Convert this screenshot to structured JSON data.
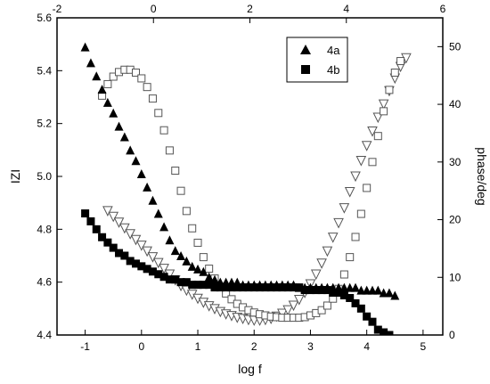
{
  "chart_data": {
    "type": "scatter",
    "xlabel": "log f",
    "ylabel_left": "IZI",
    "ylabel_right": "phase/deg",
    "x_bottom": {
      "lim": [
        -1.5,
        5.35
      ],
      "ticks": [
        -1,
        0,
        1,
        2,
        3,
        4,
        5
      ]
    },
    "x_top": {
      "lim": [
        -2,
        6
      ],
      "ticks": [
        -2,
        0,
        2,
        4,
        6
      ]
    },
    "y_left": {
      "lim": [
        4.4,
        5.6
      ],
      "ticks": [
        4.4,
        4.6,
        4.8,
        5.0,
        5.2,
        5.4,
        5.6
      ]
    },
    "y_right": {
      "lim": [
        0,
        55
      ],
      "ticks": [
        0,
        10,
        20,
        30,
        40,
        50
      ]
    },
    "legend": {
      "position": "top-right",
      "entries": [
        "4a",
        "4b"
      ]
    },
    "series": [
      {
        "name": "4a",
        "marker": "filled-triangle-up",
        "axis": "left",
        "x": [
          -1.0,
          -0.9,
          -0.8,
          -0.7,
          -0.6,
          -0.5,
          -0.4,
          -0.3,
          -0.2,
          -0.1,
          0.0,
          0.1,
          0.2,
          0.3,
          0.4,
          0.5,
          0.6,
          0.7,
          0.8,
          0.9,
          1.0,
          1.1,
          1.2,
          1.3,
          1.4,
          1.5,
          1.6,
          1.7,
          1.8,
          1.9,
          2.0,
          2.1,
          2.2,
          2.3,
          2.4,
          2.5,
          2.6,
          2.7,
          2.8,
          2.9,
          3.0,
          3.1,
          3.2,
          3.3,
          3.4,
          3.5,
          3.6,
          3.7,
          3.8,
          3.9,
          4.0,
          4.1,
          4.2,
          4.3,
          4.4,
          4.5
        ],
        "y": [
          5.49,
          5.43,
          5.38,
          5.33,
          5.28,
          5.24,
          5.19,
          5.15,
          5.1,
          5.06,
          5.01,
          4.96,
          4.91,
          4.86,
          4.81,
          4.76,
          4.72,
          4.7,
          4.68,
          4.66,
          4.65,
          4.64,
          4.62,
          4.61,
          4.6,
          4.6,
          4.6,
          4.6,
          4.59,
          4.59,
          4.59,
          4.59,
          4.59,
          4.59,
          4.59,
          4.59,
          4.59,
          4.59,
          4.58,
          4.58,
          4.58,
          4.58,
          4.58,
          4.58,
          4.58,
          4.58,
          4.58,
          4.58,
          4.58,
          4.57,
          4.57,
          4.57,
          4.57,
          4.56,
          4.56,
          4.55
        ]
      },
      {
        "name": "4b",
        "marker": "filled-square",
        "axis": "left",
        "x": [
          -1.0,
          -0.9,
          -0.8,
          -0.7,
          -0.6,
          -0.5,
          -0.4,
          -0.3,
          -0.2,
          -0.1,
          0.0,
          0.1,
          0.2,
          0.3,
          0.4,
          0.5,
          0.6,
          0.7,
          0.8,
          0.9,
          1.0,
          1.1,
          1.2,
          1.3,
          1.4,
          1.5,
          1.6,
          1.7,
          1.8,
          1.9,
          2.0,
          2.1,
          2.2,
          2.3,
          2.4,
          2.5,
          2.6,
          2.7,
          2.8,
          2.9,
          3.0,
          3.1,
          3.2,
          3.3,
          3.4,
          3.5,
          3.6,
          3.7,
          3.8,
          3.9,
          4.0,
          4.1,
          4.2,
          4.3,
          4.4
        ],
        "y": [
          4.86,
          4.83,
          4.8,
          4.77,
          4.75,
          4.73,
          4.71,
          4.7,
          4.68,
          4.67,
          4.66,
          4.65,
          4.64,
          4.63,
          4.62,
          4.61,
          4.61,
          4.6,
          4.6,
          4.59,
          4.59,
          4.59,
          4.59,
          4.58,
          4.58,
          4.58,
          4.58,
          4.58,
          4.58,
          4.58,
          4.58,
          4.58,
          4.58,
          4.58,
          4.58,
          4.58,
          4.58,
          4.58,
          4.58,
          4.57,
          4.57,
          4.57,
          4.57,
          4.57,
          4.56,
          4.56,
          4.55,
          4.54,
          4.52,
          4.5,
          4.47,
          4.45,
          4.42,
          4.41,
          4.4
        ]
      },
      {
        "name": "phase 4a",
        "marker": "open-triangle-down",
        "axis": "right",
        "x": [
          -0.6,
          -0.5,
          -0.4,
          -0.3,
          -0.2,
          -0.1,
          0.0,
          0.1,
          0.2,
          0.3,
          0.4,
          0.5,
          0.6,
          0.7,
          0.8,
          0.9,
          1.0,
          1.1,
          1.2,
          1.3,
          1.4,
          1.5,
          1.6,
          1.7,
          1.8,
          1.9,
          2.0,
          2.1,
          2.2,
          2.3,
          2.4,
          2.5,
          2.6,
          2.7,
          2.8,
          2.9,
          3.0,
          3.1,
          3.2,
          3.3,
          3.4,
          3.5,
          3.6,
          3.7,
          3.8,
          3.9,
          4.0,
          4.1,
          4.2,
          4.3,
          4.4,
          4.5,
          4.6,
          4.7
        ],
        "y": [
          21.5,
          20.5,
          19.5,
          18.5,
          17.5,
          16.5,
          15.5,
          14.5,
          13.5,
          12.5,
          11.5,
          10.5,
          9.5,
          8.5,
          7.7,
          7.0,
          6.3,
          5.6,
          5.0,
          4.5,
          4.0,
          3.6,
          3.3,
          3.0,
          2.8,
          2.6,
          2.5,
          2.5,
          2.6,
          2.8,
          3.2,
          3.7,
          4.3,
          5.1,
          6.1,
          7.3,
          8.8,
          10.5,
          12.4,
          14.5,
          16.9,
          19.4,
          22.0,
          24.8,
          27.5,
          30.2,
          32.8,
          35.3,
          37.7,
          40.0,
          42.3,
          44.5,
          46.5,
          48.0
        ]
      },
      {
        "name": "phase 4b",
        "marker": "open-square",
        "axis": "right",
        "x": [
          -0.7,
          -0.6,
          -0.5,
          -0.4,
          -0.3,
          -0.2,
          -0.1,
          0.0,
          0.1,
          0.2,
          0.3,
          0.4,
          0.5,
          0.6,
          0.7,
          0.8,
          0.9,
          1.0,
          1.1,
          1.2,
          1.3,
          1.4,
          1.5,
          1.6,
          1.7,
          1.8,
          1.9,
          2.0,
          2.1,
          2.2,
          2.3,
          2.4,
          2.5,
          2.6,
          2.7,
          2.8,
          2.9,
          3.0,
          3.1,
          3.2,
          3.3,
          3.4,
          3.5,
          3.6,
          3.7,
          3.8,
          3.9,
          4.0,
          4.1,
          4.2,
          4.3,
          4.4,
          4.5,
          4.6
        ],
        "y": [
          41.5,
          43.5,
          44.8,
          45.6,
          46.0,
          46.0,
          45.5,
          44.5,
          43.0,
          41.0,
          38.5,
          35.5,
          32.0,
          28.5,
          25.0,
          21.5,
          18.5,
          16.0,
          13.5,
          11.5,
          9.8,
          8.4,
          7.2,
          6.2,
          5.4,
          4.8,
          4.3,
          3.9,
          3.6,
          3.4,
          3.2,
          3.1,
          3.0,
          3.0,
          3.0,
          3.0,
          3.1,
          3.4,
          3.8,
          4.3,
          5.1,
          6.3,
          8.0,
          10.5,
          13.5,
          17.0,
          21.0,
          25.5,
          30.0,
          34.5,
          38.8,
          42.5,
          45.5,
          47.5
        ]
      }
    ]
  }
}
